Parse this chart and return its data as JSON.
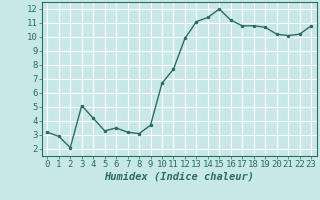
{
  "x": [
    0,
    1,
    2,
    3,
    4,
    5,
    6,
    7,
    8,
    9,
    10,
    11,
    12,
    13,
    14,
    15,
    16,
    17,
    18,
    19,
    20,
    21,
    22,
    23
  ],
  "y": [
    3.2,
    2.9,
    2.1,
    5.1,
    4.2,
    3.3,
    3.5,
    3.2,
    3.1,
    3.7,
    6.7,
    7.7,
    9.9,
    11.1,
    11.4,
    12.0,
    11.2,
    10.8,
    10.8,
    10.7,
    10.2,
    10.1,
    10.2,
    10.8
  ],
  "xlabel": "Humidex (Indice chaleur)",
  "ylim": [
    1.5,
    12.5
  ],
  "xlim": [
    -0.5,
    23.5
  ],
  "yticks": [
    2,
    3,
    4,
    5,
    6,
    7,
    8,
    9,
    10,
    11,
    12
  ],
  "xticks": [
    0,
    1,
    2,
    3,
    4,
    5,
    6,
    7,
    8,
    9,
    10,
    11,
    12,
    13,
    14,
    15,
    16,
    17,
    18,
    19,
    20,
    21,
    22,
    23
  ],
  "line_color": "#2a6e62",
  "marker_color": "#2a6e62",
  "bg_color": "#c8e8e8",
  "plot_bg_color": "#c8e8e8",
  "grid_color": "#ffffff",
  "spine_color": "#2a6e62",
  "xlabel_fontsize": 7.5,
  "tick_fontsize": 6.5
}
